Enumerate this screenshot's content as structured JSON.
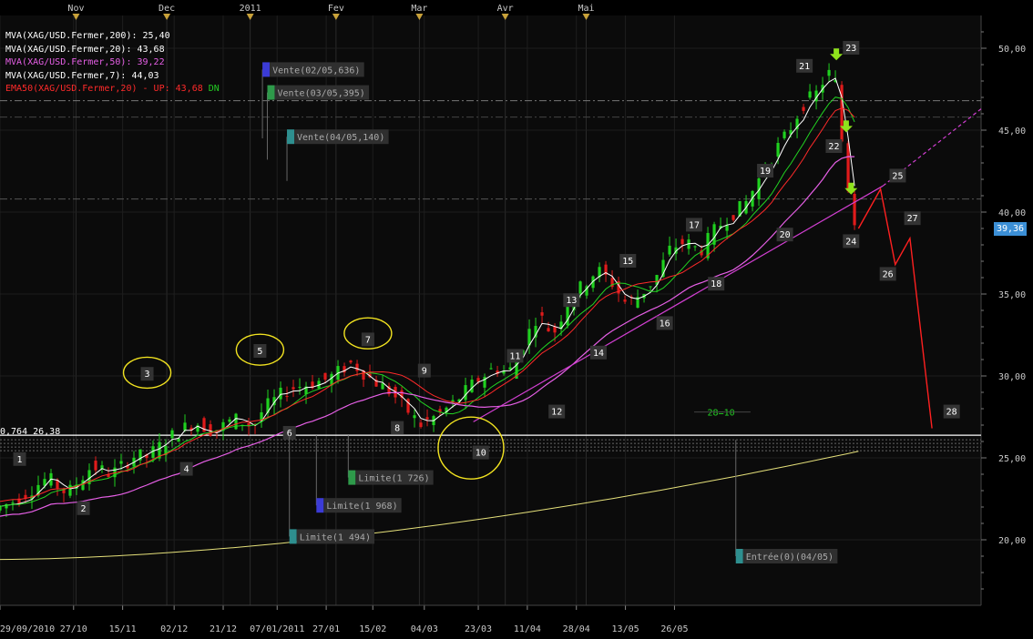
{
  "legend": [
    {
      "text": "MVA(XAG/USD.Fermer,200): 25,40",
      "color": "#ffffff"
    },
    {
      "text": "MVA(XAG/USD.Fermer,20): 43,68",
      "color": "#ffffff"
    },
    {
      "text": "MVA(XAG/USD.Fermer,50): 39,22",
      "color": "#e65fe6"
    },
    {
      "text": "MVA(XAG/USD.Fermer,7): 44,03",
      "color": "#ffffff"
    },
    {
      "text": "EMA50(XAG/USD.Fermer,20) - UP: 43,68",
      "color": "#ff2a2a",
      "suffix": "DN",
      "suffix_color": "#22cc22"
    }
  ],
  "cursor_readout": "0,764 26,38",
  "current_price": "39,36",
  "chart_data": {
    "type": "candlestick",
    "instrument": "XAG/USD",
    "x_tick_labels": [
      "29/09/2010",
      "27/10",
      "15/11",
      "02/12",
      "21/12",
      "07/01/2011",
      "27/01",
      "15/02",
      "04/03",
      "23/03",
      "11/04",
      "28/04",
      "13/05",
      "26/05"
    ],
    "month_labels": [
      "Nov",
      "Dec",
      "2011",
      "Fev",
      "Mar",
      "Avr",
      "Mai"
    ],
    "y_tick_labels": [
      "20,00",
      "25,00",
      "30,00",
      "35,00",
      "40,00",
      "45,00",
      "50,00"
    ],
    "ylim": [
      16.0,
      52.0
    ],
    "grid": true,
    "price_path": [
      {
        "t": 0,
        "v": 21.8
      },
      {
        "t": 10,
        "v": 22.5
      },
      {
        "t": 22,
        "v": 23.8
      },
      {
        "t": 30,
        "v": 22.8
      },
      {
        "t": 40,
        "v": 24.5
      },
      {
        "t": 48,
        "v": 24.0
      },
      {
        "t": 58,
        "v": 25.2
      },
      {
        "t": 62,
        "v": 25.0
      },
      {
        "t": 74,
        "v": 26.5
      },
      {
        "t": 82,
        "v": 27.2
      },
      {
        "t": 90,
        "v": 26.6
      },
      {
        "t": 98,
        "v": 27.4
      },
      {
        "t": 106,
        "v": 26.9
      },
      {
        "t": 110,
        "v": 28.0
      },
      {
        "t": 120,
        "v": 29.2
      },
      {
        "t": 128,
        "v": 29.5
      },
      {
        "t": 136,
        "v": 29.8
      },
      {
        "t": 146,
        "v": 30.8
      },
      {
        "t": 154,
        "v": 29.8
      },
      {
        "t": 162,
        "v": 29.0
      },
      {
        "t": 168,
        "v": 28.0
      },
      {
        "t": 174,
        "v": 27.0
      },
      {
        "t": 182,
        "v": 27.7
      },
      {
        "t": 188,
        "v": 28.4
      },
      {
        "t": 196,
        "v": 29.6
      },
      {
        "t": 204,
        "v": 30.5
      },
      {
        "t": 210,
        "v": 30.2
      },
      {
        "t": 216,
        "v": 32.0
      },
      {
        "t": 222,
        "v": 33.8
      },
      {
        "t": 228,
        "v": 32.5
      },
      {
        "t": 234,
        "v": 34.5
      },
      {
        "t": 240,
        "v": 35.5
      },
      {
        "t": 246,
        "v": 36.5
      },
      {
        "t": 252,
        "v": 35.7
      },
      {
        "t": 258,
        "v": 34.4
      },
      {
        "t": 264,
        "v": 35.0
      },
      {
        "t": 270,
        "v": 36.0
      },
      {
        "t": 276,
        "v": 37.8
      },
      {
        "t": 282,
        "v": 38.2
      },
      {
        "t": 288,
        "v": 37.6
      },
      {
        "t": 294,
        "v": 38.9
      },
      {
        "t": 300,
        "v": 39.8
      },
      {
        "t": 306,
        "v": 40.4
      },
      {
        "t": 312,
        "v": 42.0
      },
      {
        "t": 318,
        "v": 43.6
      },
      {
        "t": 324,
        "v": 44.9
      },
      {
        "t": 330,
        "v": 46.6
      },
      {
        "t": 336,
        "v": 47.3
      },
      {
        "t": 340,
        "v": 48.6
      },
      {
        "t": 344,
        "v": 47.6
      },
      {
        "t": 346,
        "v": 44.0
      },
      {
        "t": 348,
        "v": 42.0
      },
      {
        "t": 350,
        "v": 39.5
      }
    ],
    "wave_labels": [
      {
        "label": "1",
        "t": 8,
        "v": 24.9
      },
      {
        "label": "2",
        "t": 34,
        "v": 21.9
      },
      {
        "label": "3",
        "t": 60,
        "v": 30.1
      },
      {
        "label": "4",
        "t": 76,
        "v": 24.3
      },
      {
        "label": "5",
        "t": 106,
        "v": 31.5
      },
      {
        "label": "6",
        "t": 118,
        "v": 26.5
      },
      {
        "label": "7",
        "t": 150,
        "v": 32.2
      },
      {
        "label": "8",
        "t": 162,
        "v": 26.8
      },
      {
        "label": "9",
        "t": 173,
        "v": 30.3
      },
      {
        "label": "10",
        "t": 196,
        "v": 25.3
      },
      {
        "label": "11",
        "t": 210,
        "v": 31.2
      },
      {
        "label": "12",
        "t": 227,
        "v": 27.8
      },
      {
        "label": "13",
        "t": 233,
        "v": 34.6
      },
      {
        "label": "14",
        "t": 244,
        "v": 31.4
      },
      {
        "label": "15",
        "t": 256,
        "v": 37.0
      },
      {
        "label": "16",
        "t": 271,
        "v": 33.2
      },
      {
        "label": "17",
        "t": 283,
        "v": 39.2
      },
      {
        "label": "18",
        "t": 292,
        "v": 35.6
      },
      {
        "label": "19",
        "t": 312,
        "v": 42.5
      },
      {
        "label": "20",
        "t": 320,
        "v": 38.6
      },
      {
        "label": "21",
        "t": 328,
        "v": 48.9
      },
      {
        "label": "22",
        "t": 340,
        "v": 44.0
      },
      {
        "label": "23",
        "t": 347,
        "v": 50.0
      },
      {
        "label": "24",
        "t": 347,
        "v": 38.2
      },
      {
        "label": "25",
        "t": 366,
        "v": 42.2
      },
      {
        "label": "26",
        "t": 362,
        "v": 36.2
      },
      {
        "label": "27",
        "t": 372,
        "v": 39.6
      },
      {
        "label": "28",
        "t": 388,
        "v": 27.8
      }
    ],
    "projection": [
      {
        "t": 350,
        "v": 39.0
      },
      {
        "t": 359,
        "v": 41.4
      },
      {
        "t": 365,
        "v": 36.8
      },
      {
        "t": 371,
        "v": 38.4
      },
      {
        "t": 380,
        "v": 26.8
      }
    ],
    "orders": [
      {
        "text": "Vente(02/05,636)",
        "t": 107,
        "v": 48.7,
        "color": "#3b3bd6"
      },
      {
        "text": "Vente(03/05,395)",
        "t": 109,
        "v": 47.3,
        "color": "#2e9a4a"
      },
      {
        "text": "Vente(04/05,140)",
        "t": 117,
        "v": 44.6,
        "color": "#2e8f8f"
      },
      {
        "text": "Limite(1 726)",
        "t": 142,
        "v": 23.8,
        "color": "#2e9a4a"
      },
      {
        "text": "Limite(1 968)",
        "t": 129,
        "v": 22.1,
        "color": "#3b3bd6"
      },
      {
        "text": "Limite(1 494)",
        "t": 118,
        "v": 20.2,
        "color": "#2e8f8f"
      },
      {
        "text": "Entrée(0)(04/05)",
        "t": 300,
        "v": 19.0,
        "color": "#2e8f8f"
      }
    ],
    "range_label": "28=10",
    "support_level": 26.38
  }
}
